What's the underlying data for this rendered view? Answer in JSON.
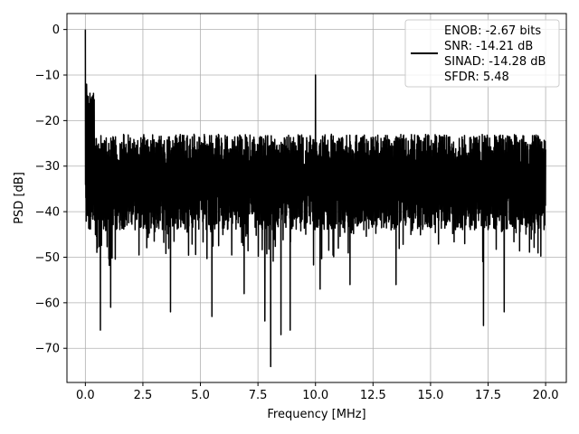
{
  "chart_data": {
    "type": "line",
    "xlabel": "Frequency [MHz]",
    "ylabel": "PSD [dB]",
    "xlim": [
      -0.8,
      20.9
    ],
    "ylim": [
      -77.5,
      3.5
    ],
    "xticks": [
      0.0,
      2.5,
      5.0,
      7.5,
      10.0,
      12.5,
      15.0,
      17.5,
      20.0
    ],
    "xtick_labels": [
      "0.0",
      "2.5",
      "5.0",
      "7.5",
      "10.0",
      "12.5",
      "15.0",
      "17.5",
      "20.0"
    ],
    "yticks": [
      0,
      -10,
      -20,
      -30,
      -40,
      -50,
      -60,
      -70
    ],
    "ytick_labels": [
      "0",
      "−10",
      "−20",
      "−30",
      "−40",
      "−50",
      "−60",
      "−70"
    ],
    "grid": true,
    "legend_position": "top-right",
    "legend": {
      "lines": [
        "ENOB: -2.67 bits",
        "SNR: -14.21 dB",
        "SINAD: -14.28 dB",
        "SFDR: 5.48"
      ]
    },
    "series": [
      {
        "color": "#000000",
        "x_range": [
          0,
          20
        ],
        "noise_upper_envelope": -23,
        "noise_lower_envelope": -44,
        "noise_mean": -33,
        "peaks": [
          {
            "x": 0.0,
            "y": 0
          },
          {
            "x": 0.05,
            "y": -12
          },
          {
            "x": 0.2,
            "y": -14
          },
          {
            "x": 10.0,
            "y": -10
          }
        ],
        "dips": [
          {
            "x": 0.2,
            "y": -52
          },
          {
            "x": 0.65,
            "y": -66
          },
          {
            "x": 1.1,
            "y": -61
          },
          {
            "x": 3.7,
            "y": -62
          },
          {
            "x": 5.5,
            "y": -63
          },
          {
            "x": 6.9,
            "y": -58
          },
          {
            "x": 7.8,
            "y": -64
          },
          {
            "x": 8.05,
            "y": -74
          },
          {
            "x": 8.5,
            "y": -67
          },
          {
            "x": 8.9,
            "y": -66
          },
          {
            "x": 10.2,
            "y": -57
          },
          {
            "x": 11.5,
            "y": -56
          },
          {
            "x": 13.5,
            "y": -56
          },
          {
            "x": 17.3,
            "y": -65
          },
          {
            "x": 18.2,
            "y": -62
          }
        ]
      }
    ]
  }
}
